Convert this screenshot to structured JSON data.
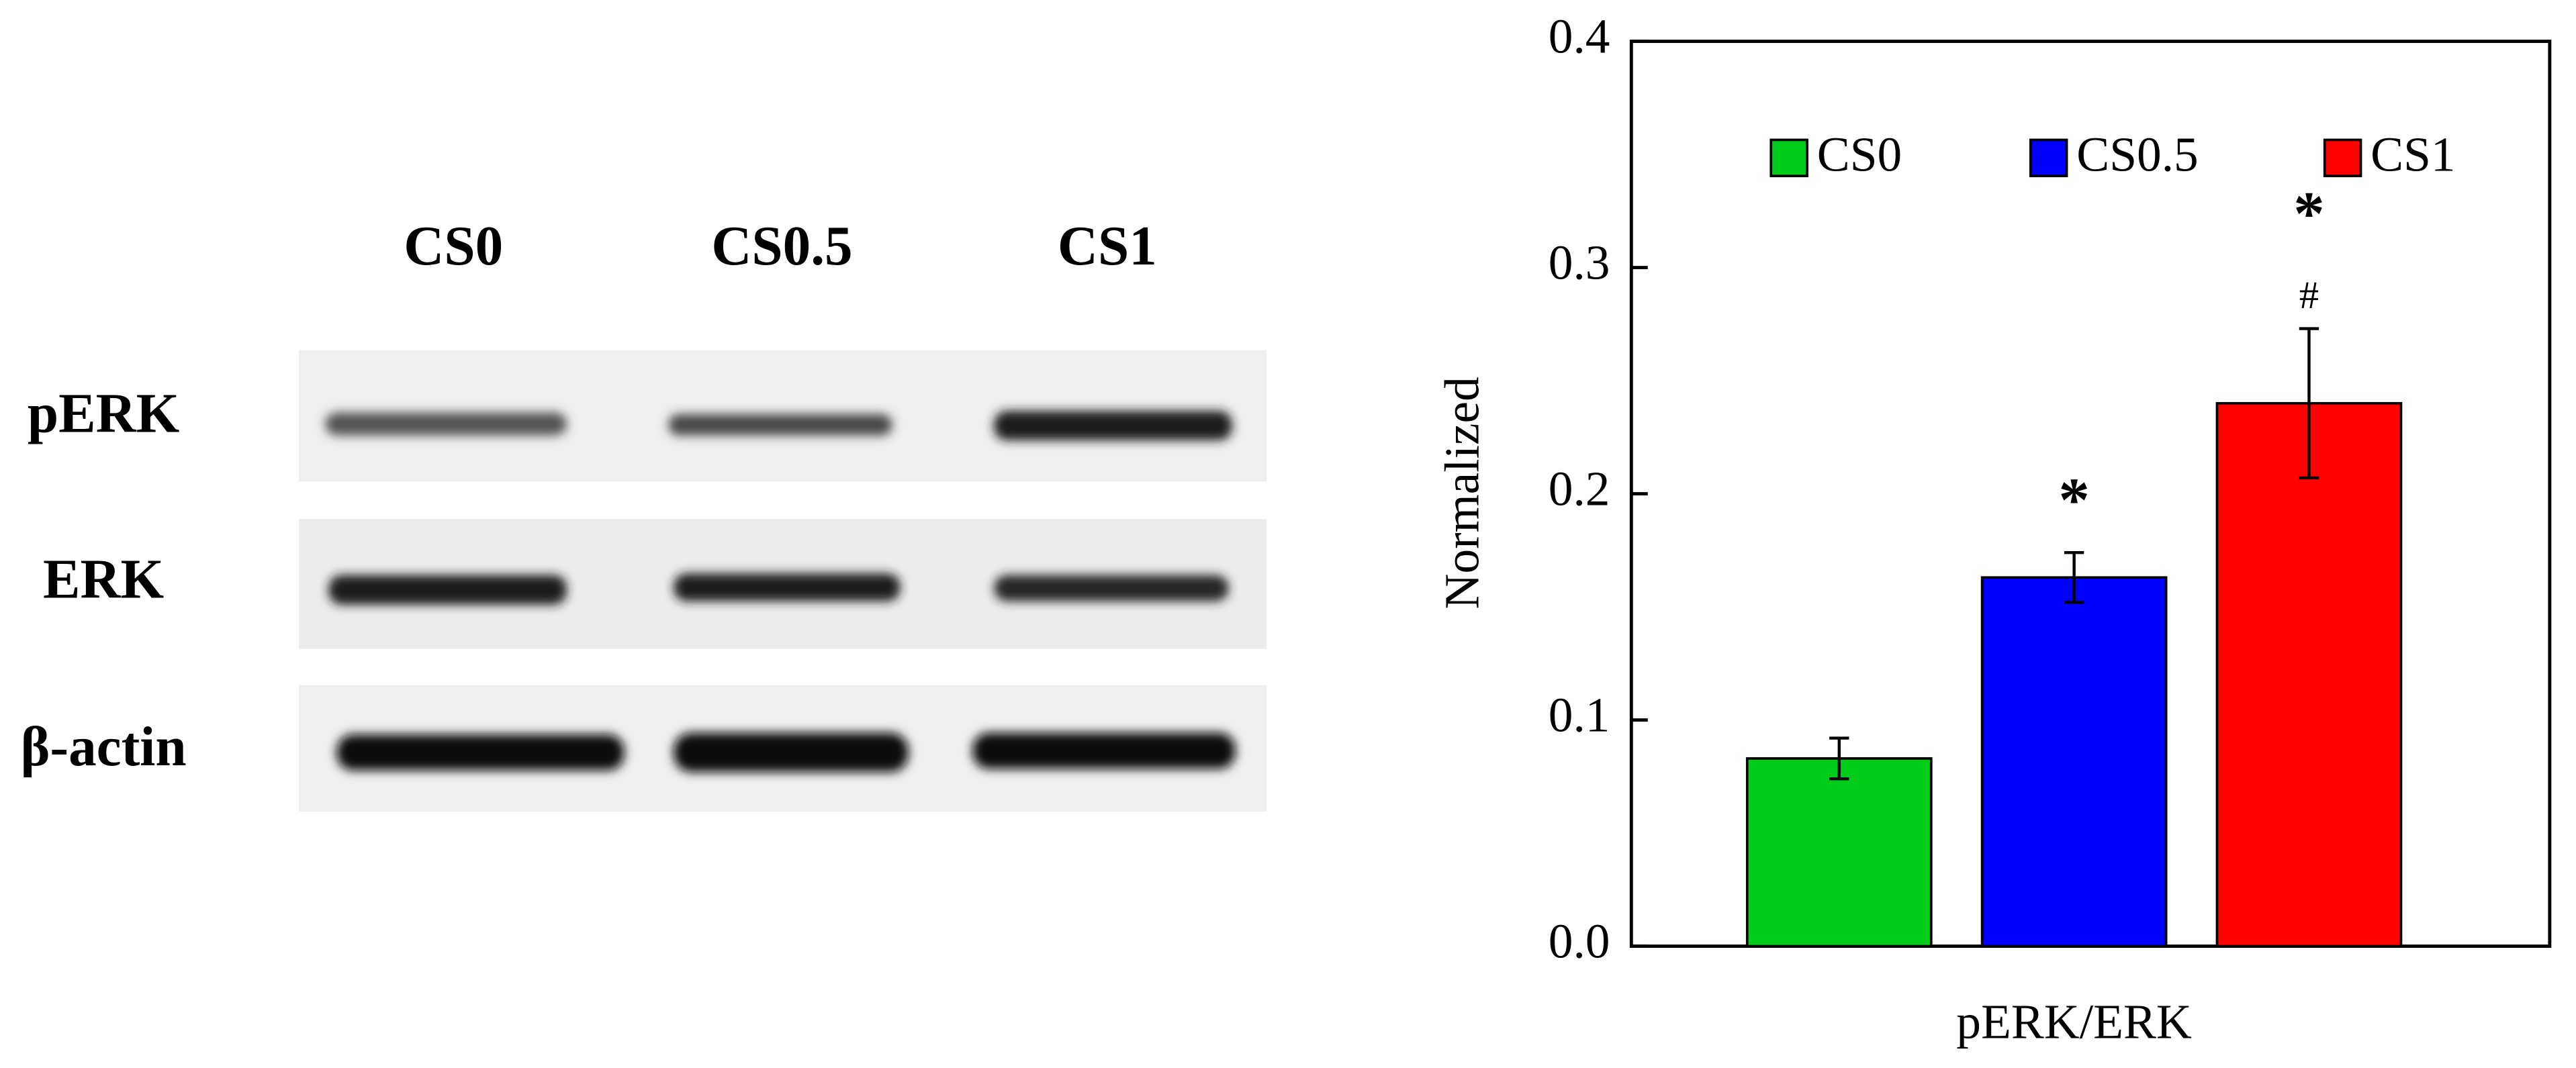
{
  "blot": {
    "lanes": [
      "CS0",
      "CS0.5",
      "CS1"
    ],
    "rows": [
      "pERK",
      "ERK",
      "β-actin"
    ]
  },
  "chart_data": {
    "type": "bar",
    "categories": [
      "pERK/ERK"
    ],
    "y_label": "Normalized",
    "ylim": [
      0,
      0.4
    ],
    "yticks": [
      {
        "value": 0,
        "label": "0.0"
      },
      0.1,
      0.2,
      0.3,
      0.4
    ],
    "legend": "top",
    "series": [
      {
        "name": "CS0",
        "color": "#00cc1a",
        "values": [
          0.083
        ],
        "errors": [
          0.009
        ]
      },
      {
        "name": "CS0.5",
        "color": "#0000ff",
        "values": [
          0.163
        ],
        "errors": [
          0.011
        ],
        "significance": [
          "*"
        ]
      },
      {
        "name": "CS1",
        "color": "#ff0000",
        "values": [
          0.24
        ],
        "errors": [
          0.033
        ],
        "significance": [
          "*",
          "#"
        ]
      }
    ]
  }
}
